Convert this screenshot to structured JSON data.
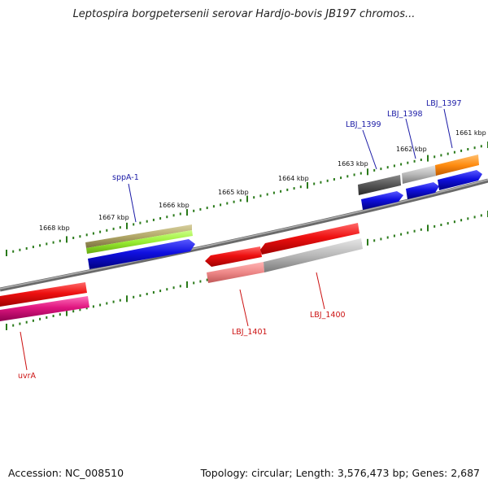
{
  "title": "Leptospira borgpetersenii serovar Hardjo-bovis JB197 chromos...",
  "footer": {
    "accession": "Accession: NC_008510",
    "summary": "Topology: circular; Length: 3,576,473 bp; Genes: 2,687"
  },
  "kbp_labels": [
    "1668 kbp",
    "1667 kbp",
    "1666 kbp",
    "1665 kbp",
    "1664 kbp",
    "1663 kbp",
    "1662 kbp",
    "1661 kbp"
  ],
  "gene_labels": [
    "sppA-1",
    "LBJ_1399",
    "LBJ_1398",
    "LBJ_1397",
    "uvrA",
    "LBJ_1401",
    "LBJ_1400"
  ],
  "colors": {
    "backbone": "#8a8a8a",
    "tick": "#2a7a1a",
    "label_blue": "#1a1aa6",
    "label_red": "#cc1111",
    "cds_blue": "#1010e0",
    "cds_red": "#ee1010",
    "cds_pink": "#e01680",
    "cds_salmon": "#ee8888",
    "cds_gray": "#b8b8b8",
    "cds_darkgray": "#555555",
    "cds_orange": "#ff8c10",
    "cds_olive": "#b2a868",
    "cds_lime": "#99ee33"
  }
}
